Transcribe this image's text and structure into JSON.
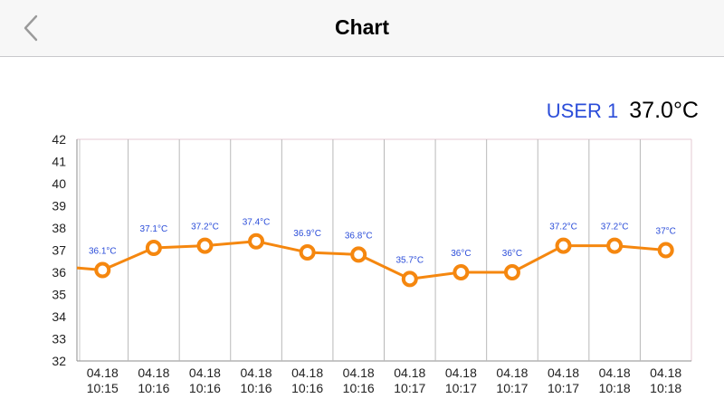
{
  "header": {
    "title": "Chart",
    "back_icon": "chevron-left-icon"
  },
  "user": {
    "name": "USER 1",
    "current_temp": "37.0°C"
  },
  "colors": {
    "line": "#f5870f",
    "label": "#2b4dd9",
    "grid": "#b9b9b9",
    "accent_name": "#2b4dd9"
  },
  "chart_data": {
    "type": "line",
    "title": "",
    "xlabel": "",
    "ylabel": "",
    "ylim": [
      32,
      42
    ],
    "y_ticks": [
      32,
      33,
      34,
      35,
      36,
      37,
      38,
      39,
      40,
      41,
      42
    ],
    "categories": [
      [
        "04.18",
        "10:15"
      ],
      [
        "04.18",
        "10:16"
      ],
      [
        "04.18",
        "10:16"
      ],
      [
        "04.18",
        "10:16"
      ],
      [
        "04.18",
        "10:16"
      ],
      [
        "04.18",
        "10:16"
      ],
      [
        "04.18",
        "10:17"
      ],
      [
        "04.18",
        "10:17"
      ],
      [
        "04.18",
        "10:17"
      ],
      [
        "04.18",
        "10:17"
      ],
      [
        "04.18",
        "10:18"
      ],
      [
        "04.18",
        "10:18"
      ]
    ],
    "values": [
      36.1,
      37.1,
      37.2,
      37.4,
      36.9,
      36.8,
      35.7,
      36.0,
      36.0,
      37.2,
      37.2,
      37.0
    ],
    "point_labels": [
      "36.1°C",
      "37.1°C",
      "37.2°C",
      "37.4°C",
      "36.9°C",
      "36.8°C",
      "35.7°C",
      "36°C",
      "36°C",
      "37.2°C",
      "37.2°C",
      "37°C"
    ],
    "previous_value": 36.2,
    "grid": true,
    "legend": "none"
  }
}
